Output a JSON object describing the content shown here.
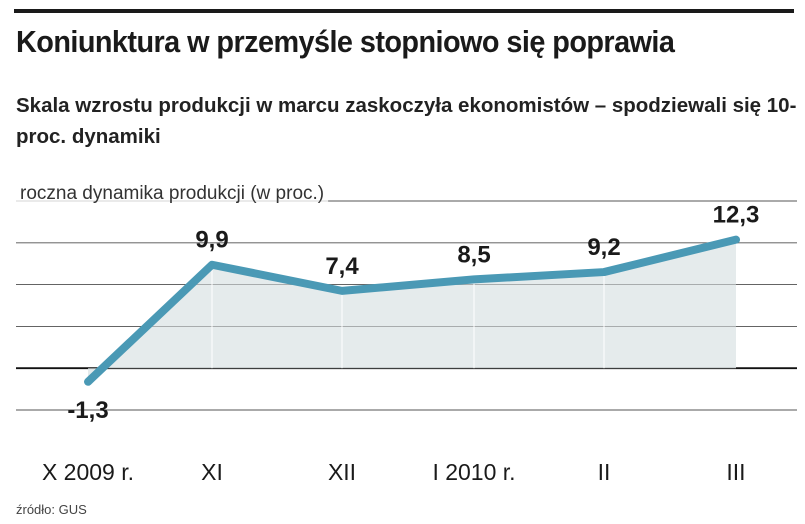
{
  "header": {
    "title": "Koniunktura w przemyśle stopniowo się poprawia",
    "subtitle": "Skala wzrostu produkcji w marcu zaskoczyła ekonomistów – spodziewali się 10-proc. dynamiki"
  },
  "source": "źródło: GUS",
  "chart_data": {
    "type": "area",
    "title": "Koniunktura w przemyśle stopniowo się poprawia",
    "subtitle": "Skala wzrostu produkcji w marcu zaskoczyła ekonomistów – spodziewali się 10-proc. dynamiki",
    "ylabel": "roczna dynamika produkcji (w proc.)",
    "xlabel": "",
    "categories": [
      "X 2009 r.",
      "XI",
      "XII",
      "I 2010 r.",
      "II",
      "III"
    ],
    "values": [
      -1.3,
      9.9,
      7.4,
      8.5,
      9.2,
      12.3
    ],
    "data_labels": [
      "-1,3",
      "9,9",
      "7,4",
      "8,5",
      "9,2",
      "12,3"
    ],
    "ylim": [
      -4,
      16
    ],
    "grid": true,
    "colors": {
      "line": "#4a99b5",
      "fill": "#e1e8e9",
      "grid": "#555555",
      "zero_line": "#111111"
    }
  }
}
